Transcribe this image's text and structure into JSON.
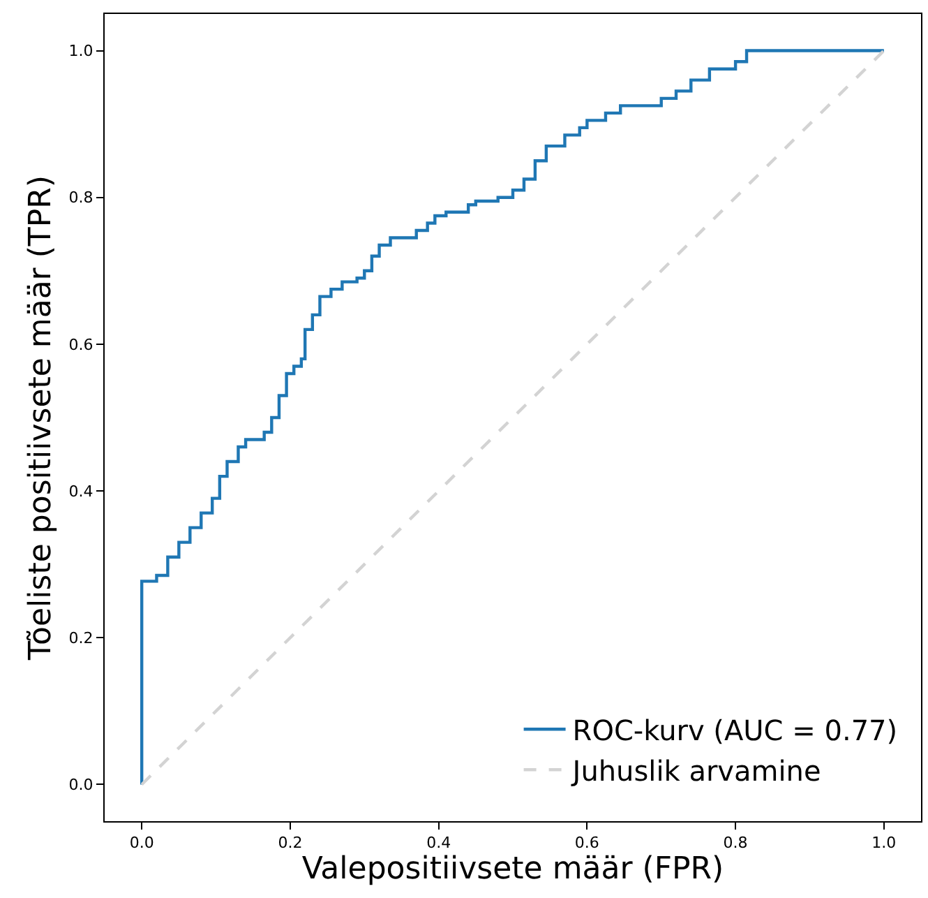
{
  "chart_data": {
    "type": "line",
    "xlabel": "Valepositiivsete määr (FPR)",
    "ylabel": "Tõeliste positiivsete määr (TPR)",
    "xlim": [
      -0.05,
      1.05
    ],
    "ylim": [
      -0.05,
      1.05
    ],
    "xticks": [
      {
        "value": 0,
        "label": "0.0"
      },
      0.2,
      0.4,
      0.6,
      0.8,
      {
        "value": 1,
        "label": "1.0"
      }
    ],
    "yticks": [
      {
        "value": 0,
        "label": "0.0"
      },
      0.2,
      0.4,
      0.6,
      0.8,
      {
        "value": 1,
        "label": "1.0"
      }
    ],
    "legend": "bottom right",
    "marker": "none",
    "series": [
      {
        "name": "ROC-kurv (AUC = 0.77)",
        "color": "#1f77b4",
        "line_style": "solid",
        "x": [
          0,
          0,
          0.02,
          0.02,
          0.035,
          0.035,
          0.05,
          0.05,
          0.065,
          0.065,
          0.08,
          0.08,
          0.095,
          0.095,
          0.105,
          0.105,
          0.115,
          0.115,
          0.13,
          0.13,
          0.14,
          0.14,
          0.165,
          0.165,
          0.175,
          0.175,
          0.185,
          0.185,
          0.195,
          0.195,
          0.205,
          0.205,
          0.215,
          0.215,
          0.22,
          0.22,
          0.23,
          0.23,
          0.24,
          0.24,
          0.255,
          0.255,
          0.27,
          0.27,
          0.29,
          0.29,
          0.3,
          0.3,
          0.31,
          0.31,
          0.32,
          0.32,
          0.335,
          0.335,
          0.37,
          0.37,
          0.385,
          0.385,
          0.395,
          0.395,
          0.41,
          0.41,
          0.44,
          0.44,
          0.45,
          0.45,
          0.48,
          0.48,
          0.5,
          0.5,
          0.515,
          0.515,
          0.53,
          0.53,
          0.545,
          0.545,
          0.57,
          0.57,
          0.59,
          0.59,
          0.6,
          0.6,
          0.625,
          0.625,
          0.645,
          0.645,
          0.7,
          0.7,
          0.72,
          0.72,
          0.74,
          0.74,
          0.765,
          0.765,
          0.8,
          0.8,
          0.815,
          0.815,
          1.0
        ],
        "values": [
          0,
          0.277,
          0.277,
          0.285,
          0.285,
          0.31,
          0.31,
          0.33,
          0.33,
          0.35,
          0.35,
          0.37,
          0.37,
          0.39,
          0.39,
          0.42,
          0.42,
          0.44,
          0.44,
          0.46,
          0.46,
          0.47,
          0.47,
          0.48,
          0.48,
          0.5,
          0.5,
          0.53,
          0.53,
          0.56,
          0.56,
          0.57,
          0.57,
          0.58,
          0.58,
          0.62,
          0.62,
          0.64,
          0.64,
          0.665,
          0.665,
          0.675,
          0.675,
          0.685,
          0.685,
          0.69,
          0.69,
          0.7,
          0.7,
          0.72,
          0.72,
          0.735,
          0.735,
          0.745,
          0.745,
          0.755,
          0.755,
          0.765,
          0.765,
          0.775,
          0.775,
          0.78,
          0.78,
          0.79,
          0.79,
          0.795,
          0.795,
          0.8,
          0.8,
          0.81,
          0.81,
          0.825,
          0.825,
          0.85,
          0.85,
          0.87,
          0.87,
          0.885,
          0.885,
          0.895,
          0.895,
          0.905,
          0.905,
          0.915,
          0.915,
          0.925,
          0.925,
          0.935,
          0.935,
          0.945,
          0.945,
          0.96,
          0.96,
          0.975,
          0.975,
          0.985,
          0.985,
          1.0,
          1.0
        ]
      },
      {
        "name": "Juhuslik arvamine",
        "color": "#d3d3d3",
        "line_style": "dashed",
        "x": [
          0,
          1
        ],
        "values": [
          0,
          1
        ]
      }
    ]
  }
}
